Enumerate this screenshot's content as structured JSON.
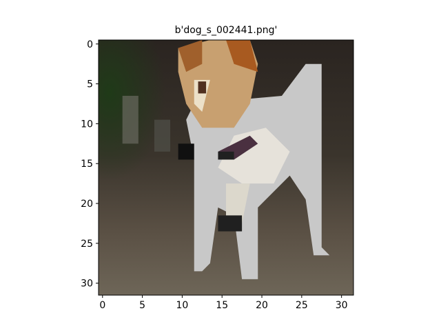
{
  "chart_data": {
    "type": "image",
    "title": "b'dog_s_002441.png'",
    "xlim": [
      -0.5,
      31.5
    ],
    "ylim": [
      31.5,
      -0.5
    ],
    "xticks": [
      0,
      5,
      10,
      15,
      20,
      25,
      30
    ],
    "yticks": [
      0,
      5,
      10,
      15,
      20,
      25,
      30
    ]
  }
}
